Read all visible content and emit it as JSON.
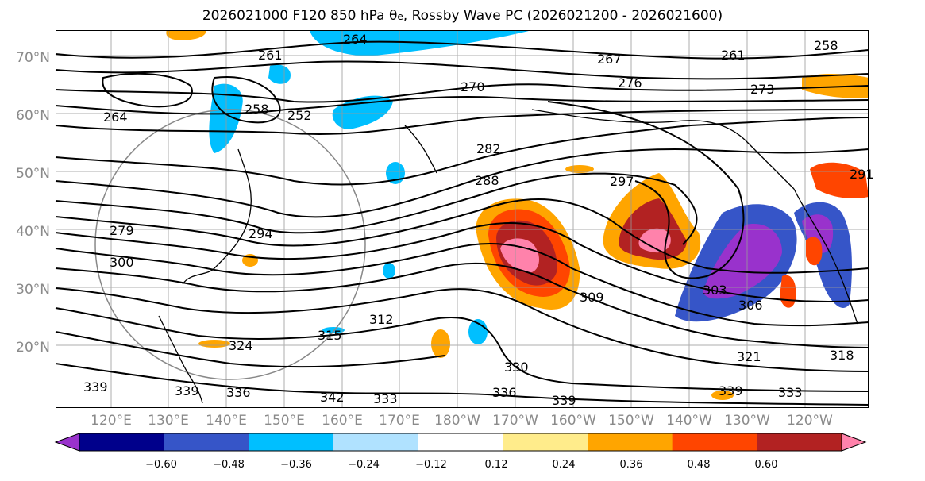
{
  "title": {
    "main": "2026021000 F120 850 hPa θ",
    "sub": "e",
    "rest": ", Rossby Wave PC (2026021200 - 2026021600)"
  },
  "map": {
    "lat_labels": [
      "70°N",
      "60°N",
      "50°N",
      "40°N",
      "30°N",
      "20°N"
    ],
    "lon_labels": [
      "120°E",
      "130°E",
      "140°E",
      "150°E",
      "160°E",
      "170°E",
      "180°W",
      "170°W",
      "160°W",
      "150°W",
      "140°W",
      "130°W",
      "120°W"
    ],
    "contour_labels": [
      "264",
      "261",
      "267",
      "261",
      "258",
      "270",
      "276",
      "273",
      "264",
      "258",
      "252",
      "282",
      "288",
      "297",
      "294",
      "279",
      "300",
      "309",
      "303",
      "306",
      "324",
      "312",
      "315",
      "330",
      "321",
      "318",
      "339",
      "336",
      "339",
      "342",
      "333",
      "336",
      "339",
      "339",
      "333",
      "291",
      "258"
    ]
  },
  "colorbar": {
    "ticks": [
      "−0.60",
      "−0.48",
      "−0.36",
      "−0.24",
      "−0.12",
      "0.12",
      "0.24",
      "0.36",
      "0.48",
      "0.60"
    ],
    "colors": [
      "#9932cc",
      "#00008b",
      "#3655c8",
      "#00bfff",
      "#b0e2ff",
      "#ffffff",
      "#ffec8b",
      "#ffa500",
      "#ff4500",
      "#b22222",
      "#ff82ab"
    ]
  }
}
